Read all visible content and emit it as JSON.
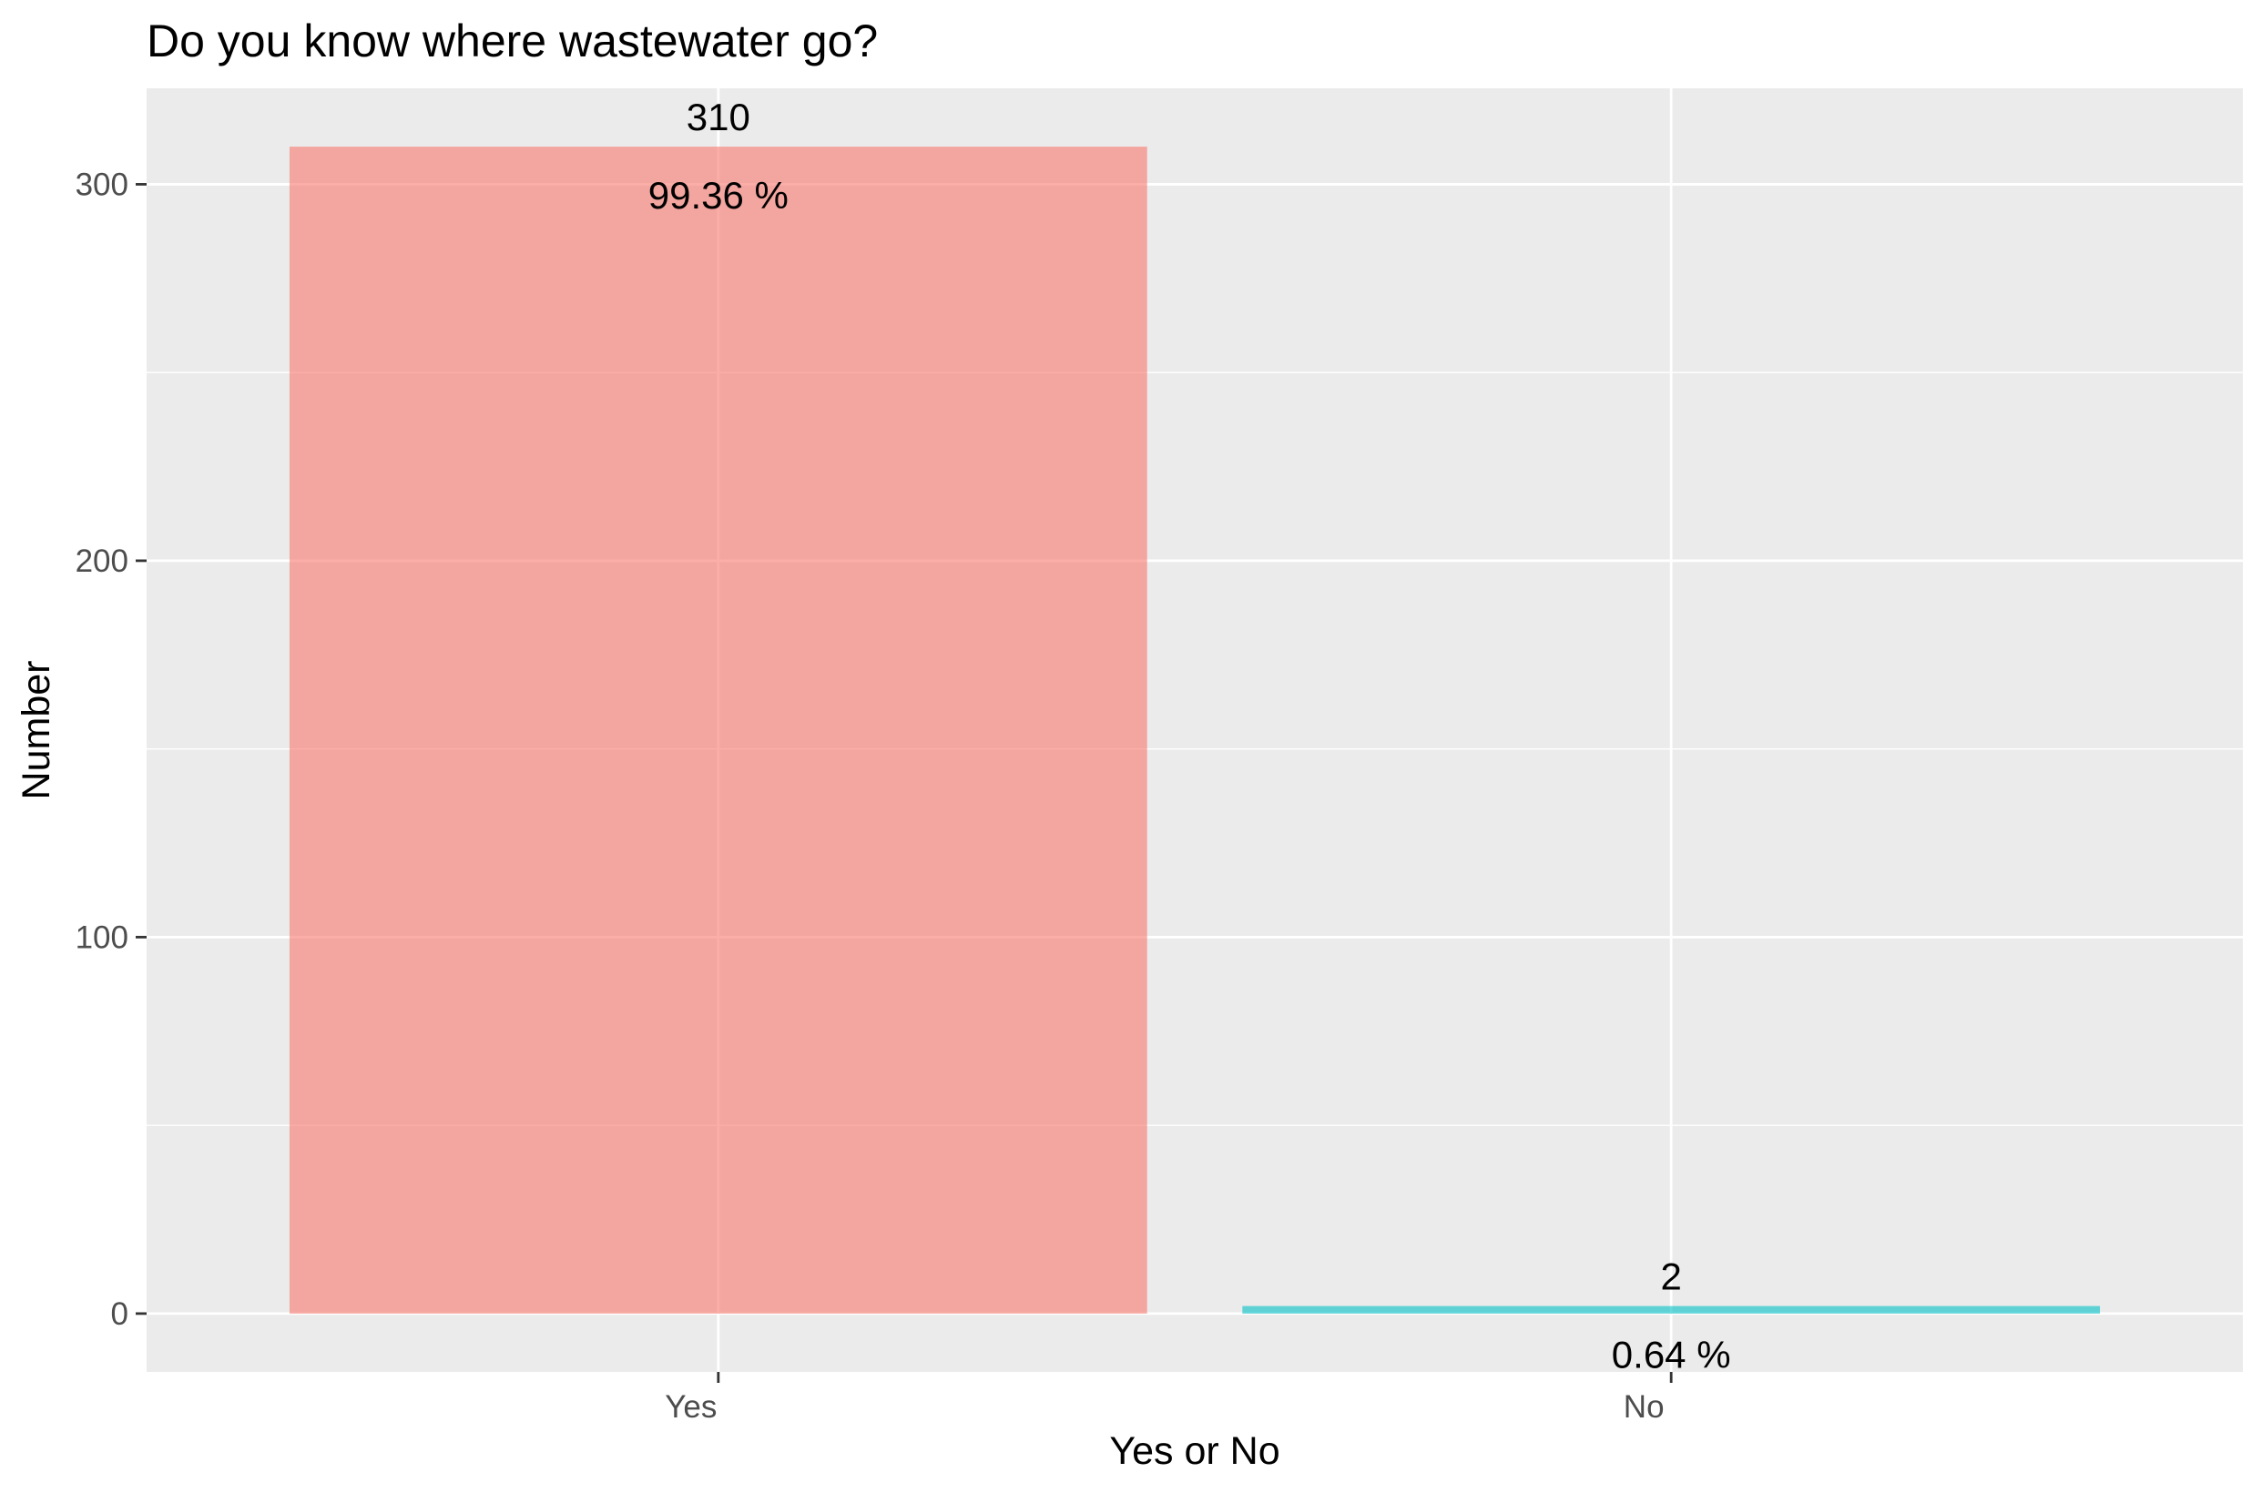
{
  "chart_data": {
    "type": "bar",
    "title": "Do you know where wastewater go?",
    "xlabel": "Yes or No",
    "ylabel": "Number",
    "categories": [
      "Yes",
      "No"
    ],
    "values": [
      310,
      2
    ],
    "percent_labels": [
      "99.36 %",
      "0.64 %"
    ],
    "colors": [
      "#F8766D",
      "#00BFC4"
    ],
    "bar_alpha": 0.6,
    "ylim": [
      -15.5,
      325.5
    ],
    "y_ticks": [
      0,
      100,
      200,
      300
    ],
    "y_minor_ticks": [
      50,
      150,
      250
    ],
    "grid": true,
    "legend": "none",
    "panel_background": "#EBEBEB",
    "grid_color": "#FFFFFF"
  }
}
